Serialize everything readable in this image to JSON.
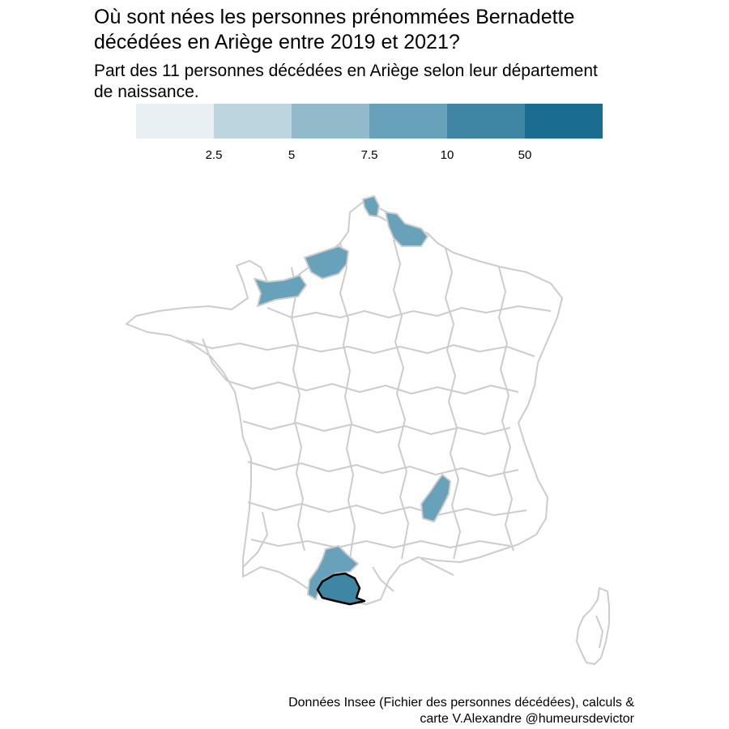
{
  "title_line1": "Où sont nées les personnes prénommées Bernadette",
  "title_line2": "décédées en Ariège entre 2019 et 2021?",
  "subtitle_line1": "Part des 11 personnes décédées en Ariège selon leur département",
  "subtitle_line2": "de naissance.",
  "legend": {
    "colors": [
      "#e8f0f3",
      "#bcd5df",
      "#93bacb",
      "#68a2ba",
      "#3f86a5",
      "#1a6c90"
    ],
    "ticks": [
      "2.5",
      "5",
      "7.5",
      "10",
      "50"
    ]
  },
  "map": {
    "border_color": "#cccccc",
    "empty_fill": "#ffffff",
    "highlight_outline": "#000000",
    "departments_filled": [
      {
        "name": "Pas-de-Calais / Nord (littoral)",
        "level": "10"
      },
      {
        "name": "Somme",
        "level": "10"
      },
      {
        "name": "Seine-Maritime",
        "level": "10"
      },
      {
        "name": "Calvados",
        "level": "10"
      },
      {
        "name": "Ardèche",
        "level": "10"
      },
      {
        "name": "Haute-Garonne",
        "level": "10"
      },
      {
        "name": "Ariège",
        "level": "50"
      }
    ]
  },
  "caption_line1": "Données Insee (Fichier des personnes décédées), calculs &",
  "caption_line2": "carte V.Alexandre @humeursdevictor"
}
